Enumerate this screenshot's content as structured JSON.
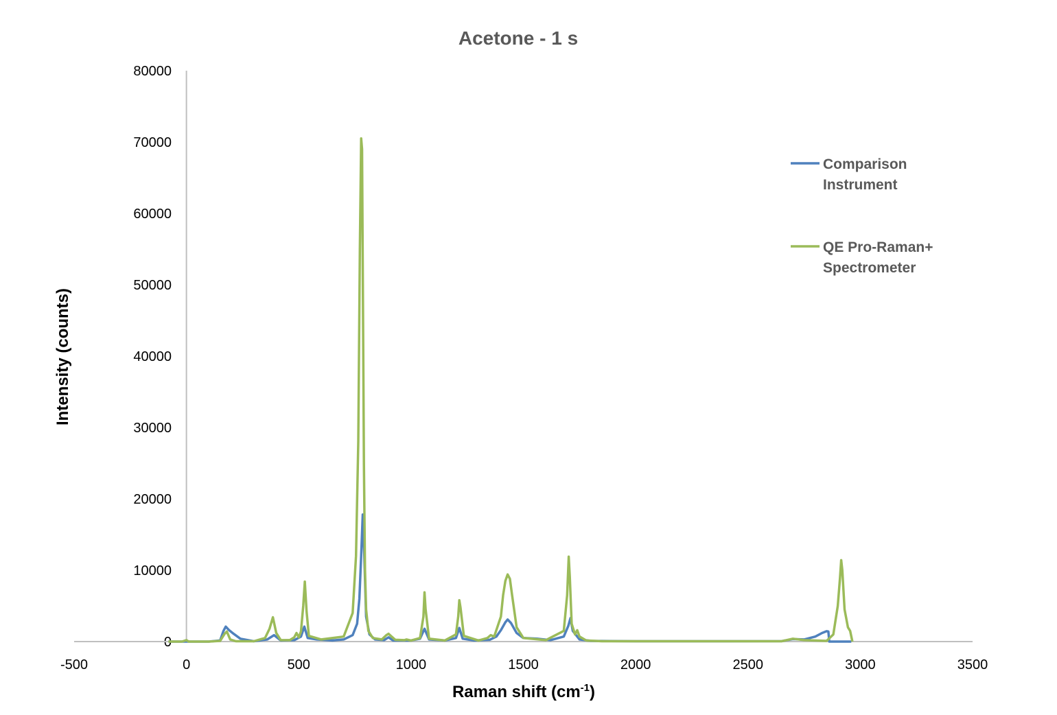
{
  "chart_data": {
    "type": "line",
    "title": "Acetone - 1 s",
    "xlabel": "Raman shift (cm",
    "xlabel_sup": "-1",
    "xlabel_end": ")",
    "ylabel": "Intensity (counts)",
    "xlim": [
      -500,
      3500
    ],
    "ylim": [
      0,
      80000
    ],
    "x_ticks": [
      -500,
      0,
      500,
      1000,
      1500,
      2000,
      2500,
      3000,
      3500
    ],
    "y_ticks": [
      0,
      10000,
      20000,
      30000,
      40000,
      50000,
      60000,
      70000,
      80000
    ],
    "x_tick_labels": [
      "-500",
      "0",
      "500",
      "1000",
      "1500",
      "2000",
      "2500",
      "3000",
      "3500"
    ],
    "y_tick_labels": [
      "0",
      "10000",
      "20000",
      "30000",
      "40000",
      "50000",
      "60000",
      "70000",
      "80000"
    ],
    "grid": false,
    "legend_position": "right",
    "series": [
      {
        "name_lines": [
          "Comparison",
          "Instrument"
        ],
        "color": "#4f81bd",
        "x": [
          -80,
          -20,
          0,
          100,
          150,
          165,
          175,
          190,
          210,
          240,
          300,
          360,
          390,
          420,
          480,
          510,
          525,
          540,
          580,
          650,
          700,
          740,
          760,
          770,
          778,
          785,
          792,
          800,
          815,
          840,
          880,
          900,
          920,
          1000,
          1040,
          1060,
          1080,
          1150,
          1200,
          1215,
          1230,
          1280,
          1350,
          1380,
          1400,
          1420,
          1430,
          1445,
          1470,
          1500,
          1560,
          1620,
          1680,
          1700,
          1710,
          1720,
          1750,
          1800,
          2000,
          2400,
          2650,
          2700,
          2750,
          2800,
          2830,
          2850,
          2858,
          2862,
          2900,
          2960
        ],
        "y": [
          0,
          0,
          0,
          0,
          150,
          1500,
          2100,
          1600,
          1100,
          400,
          50,
          300,
          900,
          150,
          200,
          700,
          2100,
          500,
          300,
          150,
          300,
          900,
          2500,
          6000,
          12000,
          17800,
          12000,
          3500,
          1000,
          300,
          200,
          600,
          150,
          150,
          400,
          1800,
          300,
          150,
          500,
          1900,
          400,
          150,
          250,
          700,
          1600,
          2700,
          3100,
          2600,
          1200,
          500,
          400,
          200,
          700,
          2200,
          3300,
          1500,
          300,
          100,
          50,
          50,
          60,
          350,
          300,
          700,
          1200,
          1450,
          1400,
          0,
          0,
          0
        ]
      },
      {
        "name_lines": [
          "QE Pro-Raman+",
          "Spectrometer"
        ],
        "color": "#9bbb59",
        "x": [
          -80,
          -20,
          0,
          10,
          100,
          150,
          170,
          180,
          195,
          220,
          300,
          350,
          370,
          385,
          400,
          420,
          460,
          480,
          490,
          500,
          510,
          520,
          527,
          535,
          545,
          600,
          700,
          740,
          755,
          765,
          772,
          778,
          782,
          786,
          790,
          795,
          800,
          810,
          830,
          870,
          890,
          900,
          910,
          930,
          970,
          980,
          1000,
          1040,
          1055,
          1060,
          1065,
          1080,
          1150,
          1200,
          1210,
          1215,
          1220,
          1235,
          1300,
          1340,
          1355,
          1370,
          1400,
          1410,
          1420,
          1430,
          1440,
          1450,
          1470,
          1500,
          1600,
          1680,
          1695,
          1702,
          1707,
          1715,
          1730,
          1740,
          1750,
          1780,
          1850,
          2000,
          2500,
          2650,
          2700,
          2750,
          2850,
          2880,
          2900,
          2910,
          2915,
          2920,
          2930,
          2945,
          2955,
          2965
        ],
        "y": [
          0,
          0,
          200,
          0,
          0,
          100,
          1100,
          1400,
          300,
          50,
          50,
          500,
          1800,
          3400,
          1200,
          200,
          200,
          600,
          1200,
          600,
          1400,
          5000,
          8400,
          4200,
          800,
          300,
          700,
          4000,
          12000,
          28000,
          55000,
          70500,
          69000,
          48000,
          25000,
          10000,
          4500,
          1500,
          500,
          300,
          900,
          1100,
          800,
          250,
          200,
          300,
          150,
          500,
          3500,
          6900,
          4500,
          400,
          150,
          1000,
          3500,
          5800,
          4800,
          800,
          150,
          500,
          900,
          700,
          3500,
          6500,
          8500,
          9400,
          8800,
          6500,
          2000,
          500,
          200,
          1500,
          6500,
          11900,
          9000,
          2500,
          1000,
          1600,
          700,
          150,
          50,
          50,
          50,
          50,
          400,
          200,
          100,
          1000,
          5000,
          9000,
          11400,
          10000,
          4500,
          2000,
          1500,
          0
        ]
      }
    ]
  }
}
